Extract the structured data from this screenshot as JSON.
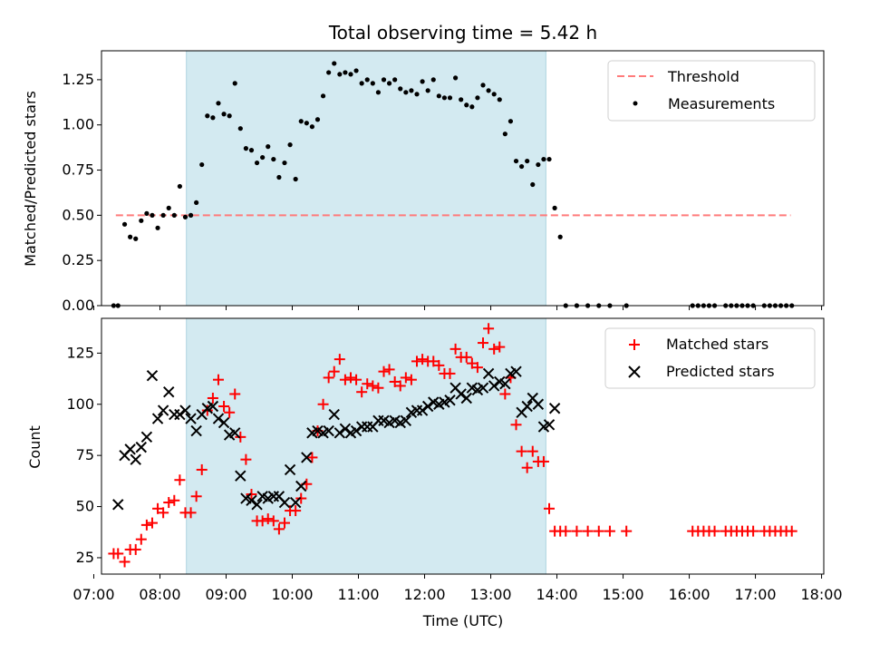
{
  "chart_data": [
    {
      "type": "scatter",
      "title": "Total observing time = 5.42 h",
      "ylabel": "Matched/Predicted stars",
      "xlabel": "",
      "xlim": [
        "07:07",
        "18:02"
      ],
      "ylim": [
        0,
        1.41
      ],
      "yticks": [
        "0.00",
        "0.25",
        "0.50",
        "0.75",
        "1.00",
        "1.25"
      ],
      "shaded_interval": [
        "08:24",
        "13:50"
      ],
      "shade_color": "#d3eaf1",
      "legend_position": "upper right",
      "threshold": {
        "name": "Threshold",
        "value": 0.5,
        "x": [
          "07:20",
          "17:32"
        ],
        "color": "#ff7b7b"
      },
      "series": [
        {
          "name": "Measurements",
          "color": "#000000",
          "x": [
            "07:18",
            "07:22",
            "07:28",
            "07:33",
            "07:38",
            "07:43",
            "07:48",
            "07:53",
            "07:58",
            "08:03",
            "08:08",
            "08:13",
            "08:18",
            "08:23",
            "08:28",
            "08:33",
            "08:38",
            "08:43",
            "08:48",
            "08:53",
            "08:58",
            "09:03",
            "09:08",
            "09:13",
            "09:18",
            "09:23",
            "09:28",
            "09:33",
            "09:38",
            "09:43",
            "09:48",
            "09:53",
            "09:58",
            "10:03",
            "10:08",
            "10:13",
            "10:18",
            "10:23",
            "10:28",
            "10:33",
            "10:38",
            "10:43",
            "10:48",
            "10:53",
            "10:58",
            "11:03",
            "11:08",
            "11:13",
            "11:18",
            "11:23",
            "11:28",
            "11:33",
            "11:38",
            "11:43",
            "11:48",
            "11:53",
            "11:58",
            "12:03",
            "12:08",
            "12:13",
            "12:18",
            "12:23",
            "12:28",
            "12:33",
            "12:38",
            "12:43",
            "12:48",
            "12:53",
            "12:58",
            "13:03",
            "13:08",
            "13:13",
            "13:18",
            "13:23",
            "13:28",
            "13:33",
            "13:38",
            "13:43",
            "13:48",
            "13:53",
            "13:58",
            "14:03",
            "14:08",
            "14:18",
            "14:28",
            "14:38",
            "14:48",
            "15:03",
            "16:03",
            "16:08",
            "16:13",
            "16:18",
            "16:23",
            "16:33",
            "16:38",
            "16:43",
            "16:48",
            "16:53",
            "16:58",
            "17:08",
            "17:13",
            "17:18",
            "17:23",
            "17:28",
            "17:33"
          ],
          "y": [
            0,
            0,
            0.45,
            0.38,
            0.37,
            0.47,
            0.51,
            0.5,
            0.43,
            0.5,
            0.54,
            0.5,
            0.66,
            0.49,
            0.5,
            0.57,
            0.78,
            1.05,
            1.04,
            1.12,
            1.06,
            1.05,
            1.23,
            0.98,
            0.87,
            0.86,
            0.79,
            0.82,
            0.88,
            0.81,
            0.71,
            0.79,
            0.89,
            0.7,
            1.02,
            1.01,
            0.99,
            1.03,
            1.16,
            1.29,
            1.34,
            1.28,
            1.29,
            1.28,
            1.3,
            1.23,
            1.25,
            1.23,
            1.18,
            1.25,
            1.23,
            1.25,
            1.2,
            1.18,
            1.19,
            1.17,
            1.24,
            1.19,
            1.25,
            1.16,
            1.15,
            1.15,
            1.26,
            1.14,
            1.11,
            1.1,
            1.15,
            1.22,
            1.19,
            1.17,
            1.14,
            0.95,
            1.02,
            0.8,
            0.77,
            0.8,
            0.67,
            0.78,
            0.81,
            0.81,
            0.54,
            0.38,
            0,
            0,
            0,
            0,
            0,
            0,
            0,
            0,
            0,
            0,
            0,
            0,
            0,
            0,
            0,
            0,
            0,
            0,
            0,
            0,
            0,
            0,
            0
          ]
        }
      ]
    },
    {
      "type": "scatter",
      "title": "",
      "ylabel": "Count",
      "xlabel": "Time (UTC)",
      "xlim": [
        "07:07",
        "18:02"
      ],
      "ylim": [
        17,
        142
      ],
      "yticks": [
        "25",
        "50",
        "75",
        "100",
        "125"
      ],
      "xticks": [
        "07:00",
        "08:00",
        "09:00",
        "10:00",
        "11:00",
        "12:00",
        "13:00",
        "14:00",
        "15:00",
        "16:00",
        "17:00",
        "18:00"
      ],
      "shaded_interval": [
        "08:24",
        "13:50"
      ],
      "legend_position": "upper right",
      "series": [
        {
          "name": "Matched stars",
          "color": "#ff0000",
          "marker": "+",
          "x": [
            "07:18",
            "07:22",
            "07:28",
            "07:33",
            "07:38",
            "07:43",
            "07:48",
            "07:53",
            "07:58",
            "08:03",
            "08:08",
            "08:13",
            "08:18",
            "08:23",
            "08:28",
            "08:33",
            "08:38",
            "08:43",
            "08:48",
            "08:53",
            "08:58",
            "09:03",
            "09:08",
            "09:13",
            "09:18",
            "09:23",
            "09:28",
            "09:33",
            "09:38",
            "09:43",
            "09:48",
            "09:53",
            "09:58",
            "10:03",
            "10:08",
            "10:13",
            "10:18",
            "10:23",
            "10:28",
            "10:33",
            "10:38",
            "10:43",
            "10:48",
            "10:53",
            "10:58",
            "11:03",
            "11:08",
            "11:13",
            "11:18",
            "11:23",
            "11:28",
            "11:33",
            "11:38",
            "11:43",
            "11:48",
            "11:53",
            "11:58",
            "12:03",
            "12:08",
            "12:13",
            "12:18",
            "12:23",
            "12:28",
            "12:33",
            "12:38",
            "12:43",
            "12:48",
            "12:53",
            "12:58",
            "13:03",
            "13:08",
            "13:13",
            "13:18",
            "13:23",
            "13:28",
            "13:33",
            "13:38",
            "13:43",
            "13:48",
            "13:53",
            "13:58",
            "14:03",
            "14:08",
            "14:18",
            "14:28",
            "14:38",
            "14:48",
            "15:03",
            "16:03",
            "16:08",
            "16:13",
            "16:18",
            "16:23",
            "16:33",
            "16:38",
            "16:43",
            "16:48",
            "16:53",
            "16:58",
            "17:08",
            "17:13",
            "17:18",
            "17:23",
            "17:28",
            "17:33"
          ],
          "y": [
            27,
            27,
            23,
            29,
            29,
            34,
            41,
            42,
            49,
            47,
            52,
            53,
            63,
            47,
            47,
            55,
            68,
            97,
            103,
            112,
            99,
            96,
            105,
            84,
            73,
            56,
            43,
            43,
            44,
            43,
            39,
            42,
            48,
            48,
            54,
            61,
            74,
            87,
            100,
            113,
            116,
            122,
            112,
            113,
            112,
            106,
            110,
            109,
            108,
            116,
            117,
            111,
            109,
            113,
            112,
            121,
            122,
            121,
            121,
            119,
            115,
            115,
            127,
            123,
            123,
            120,
            118,
            130,
            137,
            127,
            128,
            105,
            113,
            90,
            77,
            69,
            77,
            72,
            72,
            49,
            38,
            38,
            38,
            38,
            38,
            38,
            38,
            38,
            38,
            38,
            38,
            38,
            38,
            38,
            38,
            38,
            38,
            38,
            38,
            38,
            38,
            38,
            38,
            38,
            38
          ]
        },
        {
          "name": "Predicted stars",
          "color": "#000000",
          "marker": "x",
          "x": [
            "07:22",
            "07:28",
            "07:33",
            "07:38",
            "07:43",
            "07:48",
            "07:53",
            "07:58",
            "08:03",
            "08:08",
            "08:13",
            "08:18",
            "08:23",
            "08:28",
            "08:33",
            "08:38",
            "08:43",
            "08:48",
            "08:53",
            "08:58",
            "09:03",
            "09:08",
            "09:13",
            "09:18",
            "09:23",
            "09:28",
            "09:33",
            "09:38",
            "09:43",
            "09:48",
            "09:53",
            "09:58",
            "10:03",
            "10:08",
            "10:13",
            "10:18",
            "10:23",
            "10:28",
            "10:33",
            "10:38",
            "10:43",
            "10:48",
            "10:53",
            "10:58",
            "11:03",
            "11:08",
            "11:13",
            "11:18",
            "11:23",
            "11:28",
            "11:33",
            "11:38",
            "11:43",
            "11:48",
            "11:53",
            "11:58",
            "12:03",
            "12:08",
            "12:13",
            "12:18",
            "12:23",
            "12:28",
            "12:33",
            "12:38",
            "12:43",
            "12:48",
            "12:53",
            "12:58",
            "13:03",
            "13:08",
            "13:13",
            "13:18",
            "13:23",
            "13:28",
            "13:33",
            "13:38",
            "13:43",
            "13:48",
            "13:53",
            "13:58"
          ],
          "y": [
            51,
            75,
            78,
            73,
            79,
            84,
            114,
            93,
            97,
            106,
            95,
            95,
            97,
            93,
            87,
            95,
            98,
            99,
            93,
            91,
            85,
            86,
            65,
            54,
            53,
            51,
            55,
            54,
            55,
            55,
            52,
            68,
            52,
            60,
            74,
            86,
            87,
            86,
            87,
            95,
            86,
            88,
            86,
            87,
            89,
            89,
            89,
            92,
            92,
            91,
            92,
            91,
            92,
            96,
            97,
            97,
            99,
            101,
            100,
            101,
            102,
            108,
            105,
            103,
            108,
            107,
            108,
            115,
            109,
            111,
            110,
            115,
            116,
            96,
            99,
            103,
            100,
            89,
            90,
            98
          ]
        }
      ]
    }
  ]
}
